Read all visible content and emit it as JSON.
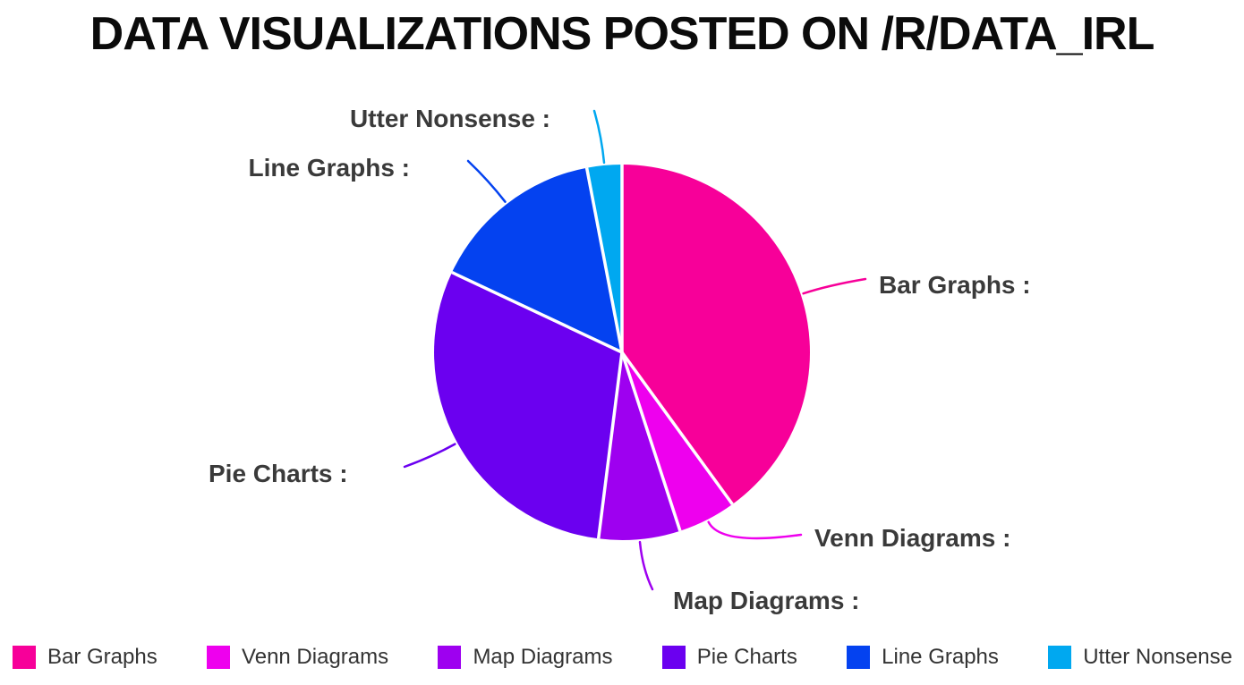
{
  "title": "DATA VISUALIZATIONS POSTED ON /R/DATA_IRL",
  "chart_data": {
    "type": "pie",
    "title": "DATA VISUALIZATIONS POSTED ON /R/DATA_IRL",
    "categories": [
      "Bar Graphs",
      "Venn Diagrams",
      "Map Diagrams",
      "Pie Charts",
      "Line Graphs",
      "Utter Nonsense"
    ],
    "values": [
      40,
      5,
      7,
      30,
      15,
      3
    ],
    "unit": "percent-of-circle (estimated from slice angles; no numeric values shown on chart)",
    "colors": [
      "#F70099",
      "#EE00EE",
      "#9E00F0",
      "#6B00F0",
      "#0442F0",
      "#00A8F0"
    ],
    "callout_labels": [
      "Bar Graphs :",
      "Venn Diagrams :",
      "Map Diagrams :",
      "Pie Charts :",
      "Line Graphs :",
      "Utter Nonsense :"
    ],
    "legend": [
      "Bar Graphs",
      "Venn Diagrams",
      "Map Diagrams",
      "Pie Charts",
      "Line Graphs",
      "Utter Nonsense"
    ],
    "legend_position": "bottom",
    "start_angle_deg_from_top": 0,
    "direction": "clockwise",
    "slice_separator_color": "#ffffff",
    "label_text_color": "#3a3a3a",
    "title_color": "#0b0b0b"
  }
}
